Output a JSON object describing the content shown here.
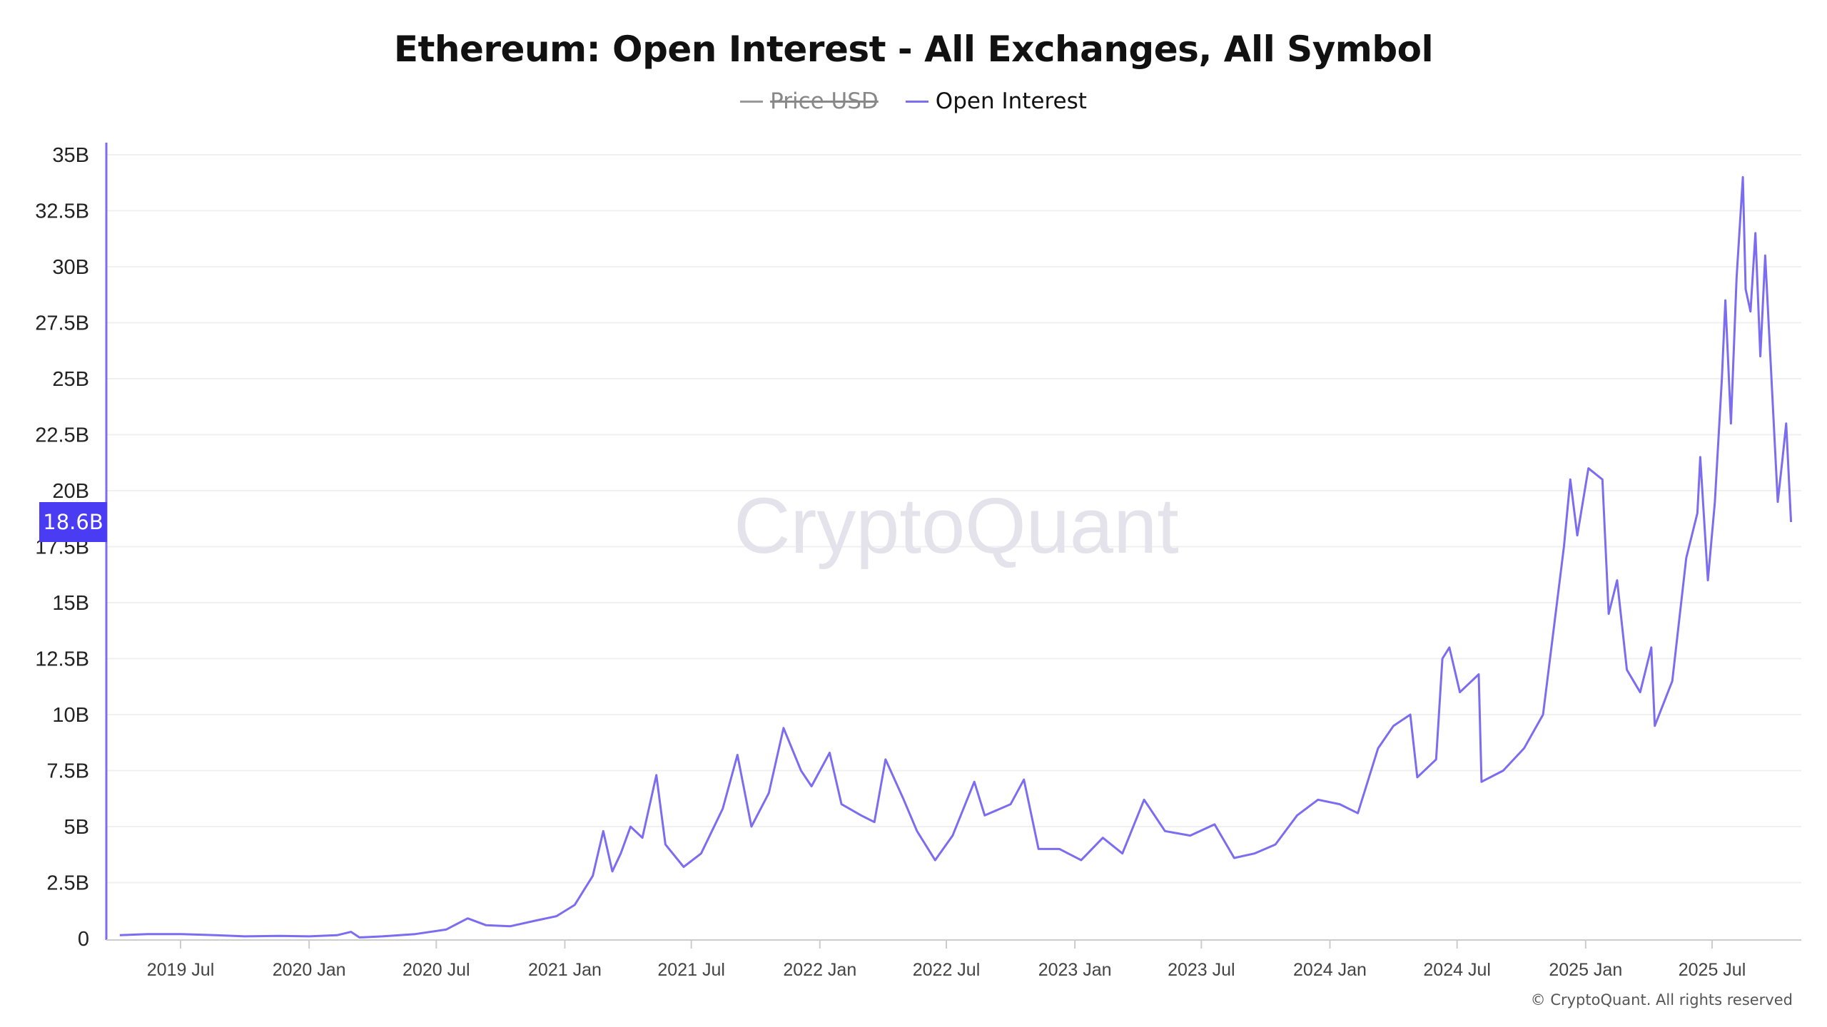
{
  "chart_data": {
    "type": "line",
    "title": "Ethereum: Open Interest - All Exchanges, All Symbol",
    "legend": [
      {
        "name": "Price USD",
        "color": "#999999",
        "hidden": true
      },
      {
        "name": "Open Interest",
        "color": "#7b6cf2",
        "hidden": false
      }
    ],
    "legend_placement": "top-center",
    "grid": true,
    "ylim": [
      0,
      35
    ],
    "y_unit": "B",
    "y_ticks": [
      "0",
      "2.5B",
      "5B",
      "7.5B",
      "10B",
      "12.5B",
      "15B",
      "17.5B",
      "20B",
      "22.5B",
      "25B",
      "27.5B",
      "30B",
      "32.5B",
      "35B"
    ],
    "x_ticks": [
      "2019 Jul",
      "2020 Jan",
      "2020 Jul",
      "2021 Jan",
      "2021 Jul",
      "2022 Jan",
      "2022 Jul",
      "2023 Jan",
      "2023 Jul",
      "2024 Jan",
      "2024 Jul",
      "2025 Jan",
      "2025 Jul"
    ],
    "current_value_label": "18.6B",
    "watermark": "CryptoQuant",
    "series": [
      {
        "name": "Open Interest",
        "color": "#7b6cf2",
        "x": [
          "2019-04-05",
          "2019-05-15",
          "2019-07-01",
          "2019-08-20",
          "2019-10-01",
          "2019-11-20",
          "2020-01-01",
          "2020-02-10",
          "2020-03-01",
          "2020-03-13",
          "2020-04-15",
          "2020-06-01",
          "2020-07-15",
          "2020-08-15",
          "2020-09-10",
          "2020-10-15",
          "2020-11-20",
          "2020-12-20",
          "2021-01-15",
          "2021-02-10",
          "2021-02-25",
          "2021-03-10",
          "2021-03-22",
          "2021-04-05",
          "2021-04-22",
          "2021-05-12",
          "2021-05-25",
          "2021-06-20",
          "2021-07-15",
          "2021-08-15",
          "2021-09-05",
          "2021-09-25",
          "2021-10-20",
          "2021-11-10",
          "2021-12-05",
          "2021-12-20",
          "2022-01-15",
          "2022-02-01",
          "2022-03-01",
          "2022-03-20",
          "2022-04-05",
          "2022-05-01",
          "2022-05-20",
          "2022-06-15",
          "2022-07-10",
          "2022-08-10",
          "2022-08-25",
          "2022-10-01",
          "2022-10-20",
          "2022-11-10",
          "2022-12-10",
          "2023-01-10",
          "2023-02-10",
          "2023-03-10",
          "2023-04-10",
          "2023-05-10",
          "2023-06-15",
          "2023-07-20",
          "2023-08-17",
          "2023-09-15",
          "2023-10-15",
          "2023-11-15",
          "2023-12-15",
          "2024-01-15",
          "2024-02-10",
          "2024-03-10",
          "2024-04-01",
          "2024-04-25",
          "2024-05-05",
          "2024-06-01",
          "2024-06-10",
          "2024-06-20",
          "2024-07-05",
          "2024-08-01",
          "2024-08-05",
          "2024-09-05",
          "2024-10-05",
          "2024-11-01",
          "2024-11-15",
          "2024-12-01",
          "2024-12-10",
          "2024-12-20",
          "2025-01-05",
          "2025-01-25",
          "2025-02-03",
          "2025-02-15",
          "2025-03-01",
          "2025-03-20",
          "2025-04-05",
          "2025-04-10",
          "2025-05-05",
          "2025-05-25",
          "2025-06-10",
          "2025-06-14",
          "2025-06-25",
          "2025-07-05",
          "2025-07-15",
          "2025-07-20",
          "2025-07-28",
          "2025-08-05",
          "2025-08-14",
          "2025-08-18",
          "2025-08-25",
          "2025-09-01",
          "2025-09-08",
          "2025-09-15",
          "2025-10-03",
          "2025-10-10",
          "2025-10-15",
          "2025-10-22"
        ],
        "y": [
          0.15,
          0.2,
          0.2,
          0.15,
          0.1,
          0.12,
          0.1,
          0.15,
          0.3,
          0.05,
          0.1,
          0.2,
          0.4,
          0.9,
          0.6,
          0.55,
          0.8,
          1.0,
          1.5,
          2.8,
          4.8,
          3.0,
          3.8,
          5.0,
          4.5,
          7.3,
          4.2,
          3.2,
          3.8,
          5.8,
          8.2,
          5.0,
          6.5,
          9.4,
          7.5,
          6.8,
          8.3,
          6.0,
          5.5,
          5.2,
          8.0,
          6.2,
          4.8,
          3.5,
          4.6,
          7.0,
          5.5,
          6.0,
          7.1,
          4.0,
          4.0,
          3.5,
          4.5,
          3.8,
          6.2,
          4.8,
          4.6,
          5.1,
          3.6,
          3.8,
          4.2,
          5.5,
          6.2,
          6.0,
          5.6,
          8.5,
          9.5,
          10.0,
          7.2,
          8.0,
          12.5,
          13.0,
          11.0,
          11.8,
          7.0,
          7.5,
          8.5,
          10.0,
          13.5,
          17.5,
          20.5,
          18.0,
          21.0,
          20.5,
          14.5,
          16.0,
          12.0,
          11.0,
          13.0,
          9.5,
          11.5,
          17.0,
          19.0,
          21.5,
          16.0,
          19.5,
          25.0,
          28.5,
          23.0,
          29.5,
          34.0,
          29.0,
          28.0,
          31.5,
          26.0,
          30.5,
          19.5,
          21.5,
          23.0,
          18.6
        ]
      }
    ]
  },
  "footer": "© CryptoQuant. All rights reserved"
}
